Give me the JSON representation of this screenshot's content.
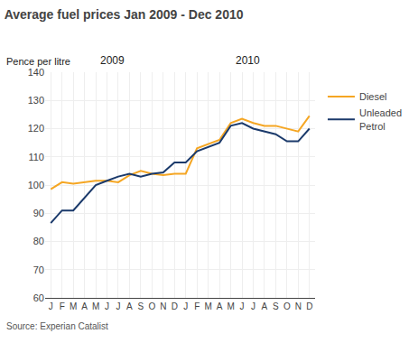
{
  "chart_data": {
    "type": "line",
    "title": "Average fuel prices Jan 2009 - Dec 2010",
    "ylabel": "Pence per litre",
    "source": "Source: Experian Catalist",
    "annotations": [
      "2009",
      "2010"
    ],
    "categories": [
      "J",
      "F",
      "M",
      "A",
      "M",
      "J",
      "J",
      "A",
      "S",
      "O",
      "N",
      "D",
      "J",
      "F",
      "M",
      "A",
      "M",
      "J",
      "J",
      "A",
      "S",
      "O",
      "N",
      "D"
    ],
    "series": [
      {
        "name": "Diesel",
        "color": "#F5A623",
        "values": [
          98.5,
          101.0,
          100.5,
          101.0,
          101.5,
          101.5,
          101.0,
          103.5,
          105.0,
          104.0,
          103.5,
          104.0,
          104.0,
          113.0,
          114.5,
          116.0,
          122.0,
          123.5,
          122.0,
          121.0,
          121.0,
          120.0,
          119.0,
          124.5
        ]
      },
      {
        "name": "Unleaded\nPetrol",
        "color": "#1B3A6B",
        "values": [
          86.5,
          91.0,
          91.0,
          95.5,
          100.0,
          101.5,
          103.0,
          104.0,
          103.0,
          104.0,
          104.5,
          108.0,
          108.0,
          112.0,
          113.5,
          115.0,
          121.0,
          122.0,
          120.0,
          119.0,
          118.0,
          115.5,
          115.5,
          120.0
        ]
      }
    ],
    "ylim": [
      60,
      140
    ],
    "yticks": [
      60,
      70,
      80,
      90,
      100,
      110,
      120,
      130,
      140
    ],
    "grid": true
  }
}
